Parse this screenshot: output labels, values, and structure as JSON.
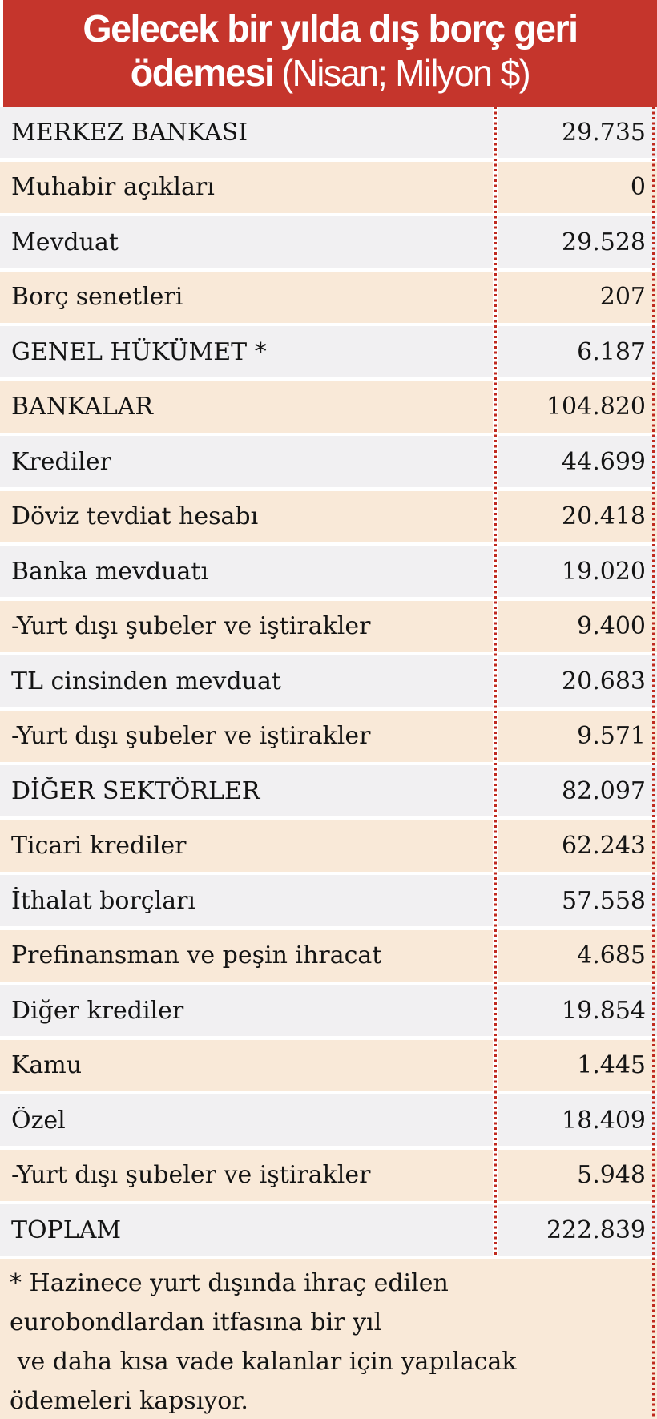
{
  "header": {
    "title_line1": "Gelecek bir yılda dış borç geri",
    "title_line2_bold": "ödemesi",
    "title_line2_light": "(Nisan; Milyon $)",
    "background_color": "#c5352c",
    "text_color": "#ffffff"
  },
  "table": {
    "rows": [
      {
        "label": "MERKEZ BANKASI",
        "value": "29.735"
      },
      {
        "label": "Muhabir açıkları",
        "value": "0"
      },
      {
        "label": "Mevduat",
        "value": "29.528"
      },
      {
        "label": "Borç senetleri",
        "value": "207"
      },
      {
        "label": "GENEL HÜKÜMET *",
        "value": "6.187"
      },
      {
        "label": "BANKALAR",
        "value": "104.820"
      },
      {
        "label": "Krediler",
        "value": "44.699"
      },
      {
        "label": "Döviz tevdiat hesabı",
        "value": "20.418"
      },
      {
        "label": "Banka mevduatı",
        "value": "19.020"
      },
      {
        "label": "-Yurt dışı şubeler ve iştirakler",
        "value": "9.400"
      },
      {
        "label": "TL cinsinden mevduat",
        "value": "20.683"
      },
      {
        "label": "-Yurt dışı şubeler ve iştirakler",
        "value": "9.571"
      },
      {
        "label": "DİĞER SEKTÖRLER",
        "value": "82.097"
      },
      {
        "label": "Ticari krediler",
        "value": "62.243"
      },
      {
        "label": "İthalat borçları",
        "value": "57.558"
      },
      {
        "label": "Prefinansman ve peşin ihracat",
        "value": "4.685"
      },
      {
        "label": "Diğer krediler",
        "value": "19.854"
      },
      {
        "label": "Kamu",
        "value": "1.445"
      },
      {
        "label": "Özel",
        "value": "18.409"
      },
      {
        "label": "-Yurt dışı şubeler ve iştirakler",
        "value": "5.948"
      },
      {
        "label": "TOPLAM",
        "value": "222.839"
      }
    ],
    "row_colors": {
      "odd": "#f1f0f2",
      "even": "#f9e9d8"
    },
    "divider_color": "#bf291e"
  },
  "footnote": {
    "lines": [
      "* Hazinece yurt dışında ihraç edilen",
      "eurobondlardan itfasına bir yıl",
      " ve daha kısa vade kalanlar için yapılacak",
      "ödemeleri kapsıyor."
    ]
  },
  "chart_data": {
    "type": "table",
    "title": "Gelecek bir yılda dış borç geri ödemesi (Nisan; Milyon $)",
    "unit": "Milyon $",
    "categories": [
      "MERKEZ BANKASI",
      "Muhabir açıkları",
      "Mevduat",
      "Borç senetleri",
      "GENEL HÜKÜMET *",
      "BANKALAR",
      "Krediler",
      "Döviz tevdiat hesabı",
      "Banka mevduatı",
      "-Yurt dışı şubeler ve iştirakler",
      "TL cinsinden mevduat",
      "-Yurt dışı şubeler ve iştirakler",
      "DİĞER SEKTÖRLER",
      "Ticari krediler",
      "İthalat borçları",
      "Prefinansman ve peşin ihracat",
      "Diğer krediler",
      "Kamu",
      "Özel",
      "-Yurt dışı şubeler ve iştirakler",
      "TOPLAM"
    ],
    "values": [
      29735,
      0,
      29528,
      207,
      6187,
      104820,
      44699,
      20418,
      19020,
      9400,
      20683,
      9571,
      82097,
      62243,
      57558,
      4685,
      19854,
      1445,
      18409,
      5948,
      222839
    ],
    "footnote": "* Hazinece yurt dışında ihraç edilen eurobondlardan itfasına bir yıl ve daha kısa vade kalanlar için yapılacak ödemeleri kapsıyor."
  }
}
